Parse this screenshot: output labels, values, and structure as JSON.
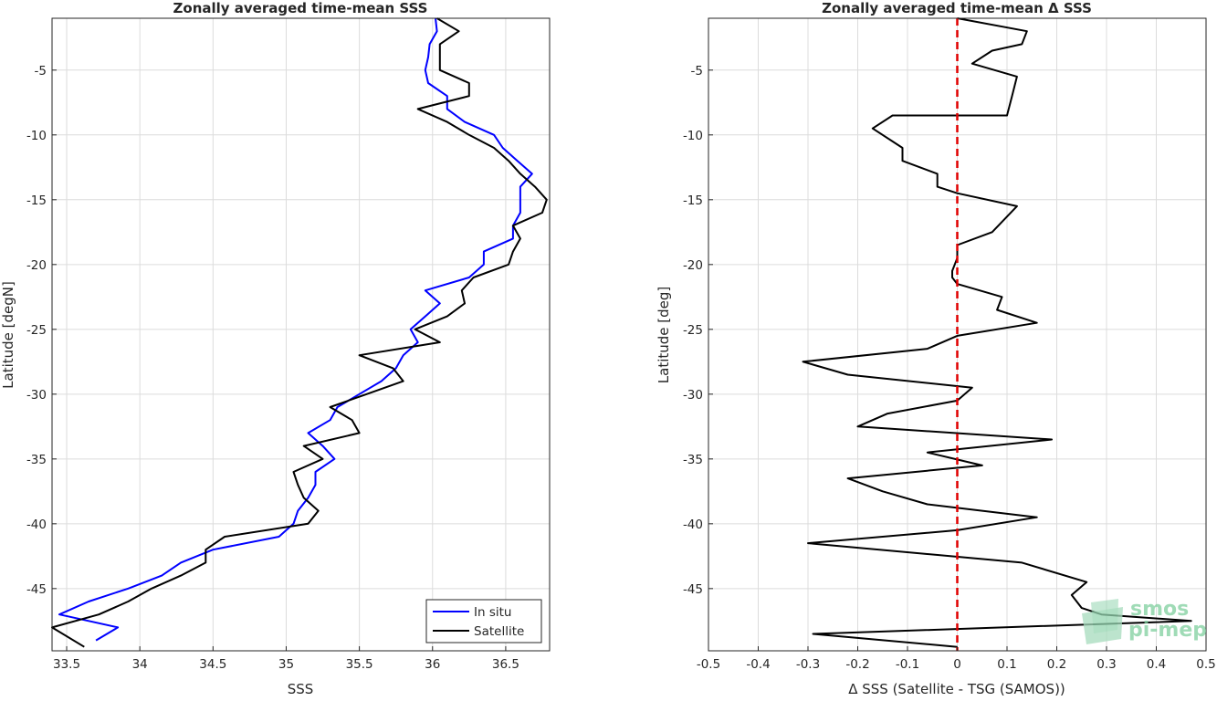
{
  "chart_data": [
    {
      "type": "line",
      "title": "Zonally averaged time-mean SSS",
      "xlabel": "SSS",
      "ylabel": "Latitude [degN]",
      "xlim": [
        33.4,
        36.8
      ],
      "ylim": [
        -49.8,
        -1.0
      ],
      "xticks": [
        "33.5",
        "34",
        "34.5",
        "35",
        "35.5",
        "36",
        "36.5"
      ],
      "xtick_values": [
        33.5,
        34,
        34.5,
        35,
        35.5,
        36,
        36.5
      ],
      "yticks": [
        "-5",
        "-10",
        "-15",
        "-20",
        "-25",
        "-30",
        "-35",
        "-40",
        "-45"
      ],
      "ytick_values": [
        -5,
        -10,
        -15,
        -20,
        -25,
        -30,
        -35,
        -40,
        -45
      ],
      "grid": true,
      "legend_position": "bottom-right",
      "series": [
        {
          "name": "In situ",
          "color": "#0000ff",
          "x": [
            36.02,
            36.03,
            35.98,
            35.97,
            35.95,
            35.97,
            36.1,
            36.1,
            36.22,
            36.42,
            36.48,
            36.58,
            36.68,
            36.6,
            36.6,
            36.6,
            36.55,
            36.55,
            36.35,
            36.35,
            36.25,
            35.95,
            36.05,
            35.95,
            35.85,
            35.9,
            35.8,
            35.75,
            35.65,
            35.5,
            35.35,
            35.3,
            35.15,
            35.25,
            35.33,
            35.2,
            35.2,
            35.15,
            35.08,
            35.05,
            34.95,
            34.5,
            34.28,
            34.15,
            33.92,
            33.65,
            33.45,
            33.85,
            33.7
          ],
          "y": [
            -1,
            -2,
            -3,
            -4,
            -5,
            -6,
            -7,
            -8,
            -9,
            -10,
            -11,
            -12,
            -13,
            -14,
            -15,
            -16,
            -17,
            -18,
            -19,
            -20,
            -21,
            -22,
            -23,
            -24,
            -25,
            -26,
            -27,
            -28,
            -29,
            -30,
            -31,
            -32,
            -33,
            -34,
            -35,
            -36,
            -37,
            -38,
            -39,
            -40,
            -41,
            -42,
            -43,
            -44,
            -45,
            -46,
            -47,
            -48,
            -49
          ]
        },
        {
          "name": "Satellite",
          "color": "#000000",
          "x": [
            36.03,
            36.18,
            36.05,
            36.05,
            36.05,
            36.25,
            36.25,
            35.9,
            36.1,
            36.25,
            36.42,
            36.52,
            36.6,
            36.7,
            36.78,
            36.75,
            36.55,
            36.6,
            36.55,
            36.52,
            36.28,
            36.2,
            36.22,
            36.1,
            35.88,
            36.05,
            35.5,
            35.73,
            35.8,
            35.55,
            35.3,
            35.45,
            35.5,
            35.12,
            35.25,
            35.05,
            35.08,
            35.12,
            35.22,
            35.15,
            34.58,
            34.45,
            34.45,
            34.28,
            34.08,
            33.92,
            33.72,
            33.4,
            33.62
          ],
          "y": [
            -1,
            -2,
            -3,
            -4,
            -5,
            -6,
            -7,
            -8,
            -9,
            -10,
            -11,
            -12,
            -13,
            -14,
            -15,
            -16,
            -17,
            -18,
            -19,
            -20,
            -21,
            -22,
            -23,
            -24,
            -25,
            -26,
            -27,
            -28,
            -29,
            -30,
            -31,
            -32,
            -33,
            -34,
            -35,
            -36,
            -37,
            -38,
            -39,
            -40,
            -41,
            -42,
            -43,
            -44,
            -45,
            -46,
            -47,
            -48,
            -49.5
          ]
        }
      ]
    },
    {
      "type": "line",
      "title": "Zonally averaged time-mean Δ SSS",
      "xlabel": "Δ SSS (Satellite - TSG (SAMOS))",
      "ylabel": "Latitude [deg]",
      "xlim": [
        -0.5,
        0.5
      ],
      "ylim": [
        -49.8,
        -1.0
      ],
      "xticks": [
        "-0.5",
        "-0.4",
        "-0.3",
        "-0.2",
        "-0.1",
        "0",
        "0.1",
        "0.2",
        "0.3",
        "0.4",
        "0.5"
      ],
      "xtick_values": [
        -0.5,
        -0.4,
        -0.3,
        -0.2,
        -0.1,
        0,
        0.1,
        0.2,
        0.3,
        0.4,
        0.5
      ],
      "yticks": [
        "-5",
        "-10",
        "-15",
        "-20",
        "-25",
        "-30",
        "-35",
        "-40",
        "-45"
      ],
      "ytick_values": [
        -5,
        -10,
        -15,
        -20,
        -25,
        -30,
        -35,
        -40,
        -45
      ],
      "grid": true,
      "reference_line": {
        "x": 0,
        "color": "#e00000",
        "style": "dashed"
      },
      "series": [
        {
          "name": "",
          "color": "#000000",
          "x": [
            0.0,
            0.14,
            0.13,
            0.07,
            0.03,
            0.12,
            0.11,
            0.1,
            -0.13,
            -0.17,
            -0.11,
            -0.11,
            -0.04,
            -0.04,
            0.0,
            0.12,
            0.07,
            0.0,
            0.0,
            -0.01,
            -0.01,
            0.0,
            0.09,
            0.08,
            0.16,
            0.0,
            -0.06,
            -0.31,
            -0.22,
            0.03,
            0.0,
            -0.14,
            -0.2,
            0.19,
            -0.06,
            0.05,
            -0.22,
            -0.15,
            -0.06,
            0.16,
            0.0,
            -0.3,
            0.13,
            0.26,
            0.23,
            0.25,
            0.29,
            0.47,
            -0.29,
            0.0
          ],
          "y": [
            -1,
            -2,
            -3,
            -3.5,
            -4.5,
            -5.5,
            -7,
            -8.5,
            -8.5,
            -9.5,
            -11,
            -12,
            -13,
            -14,
            -14.5,
            -15.5,
            -17.5,
            -18.5,
            -19.5,
            -20.5,
            -21,
            -21.5,
            -22.5,
            -23.5,
            -24.5,
            -25.5,
            -26.5,
            -27.5,
            -28.5,
            -29.5,
            -30.5,
            -31.5,
            -32.5,
            -33.5,
            -34.5,
            -35.5,
            -36.5,
            -37.5,
            -38.5,
            -39.5,
            -40.5,
            -41.5,
            -43,
            -44.5,
            -45.5,
            -46.5,
            -47,
            -47.5,
            -48.5,
            -49.5
          ]
        }
      ]
    }
  ],
  "logo": {
    "line1": "smos",
    "line2": "pi-mep"
  }
}
